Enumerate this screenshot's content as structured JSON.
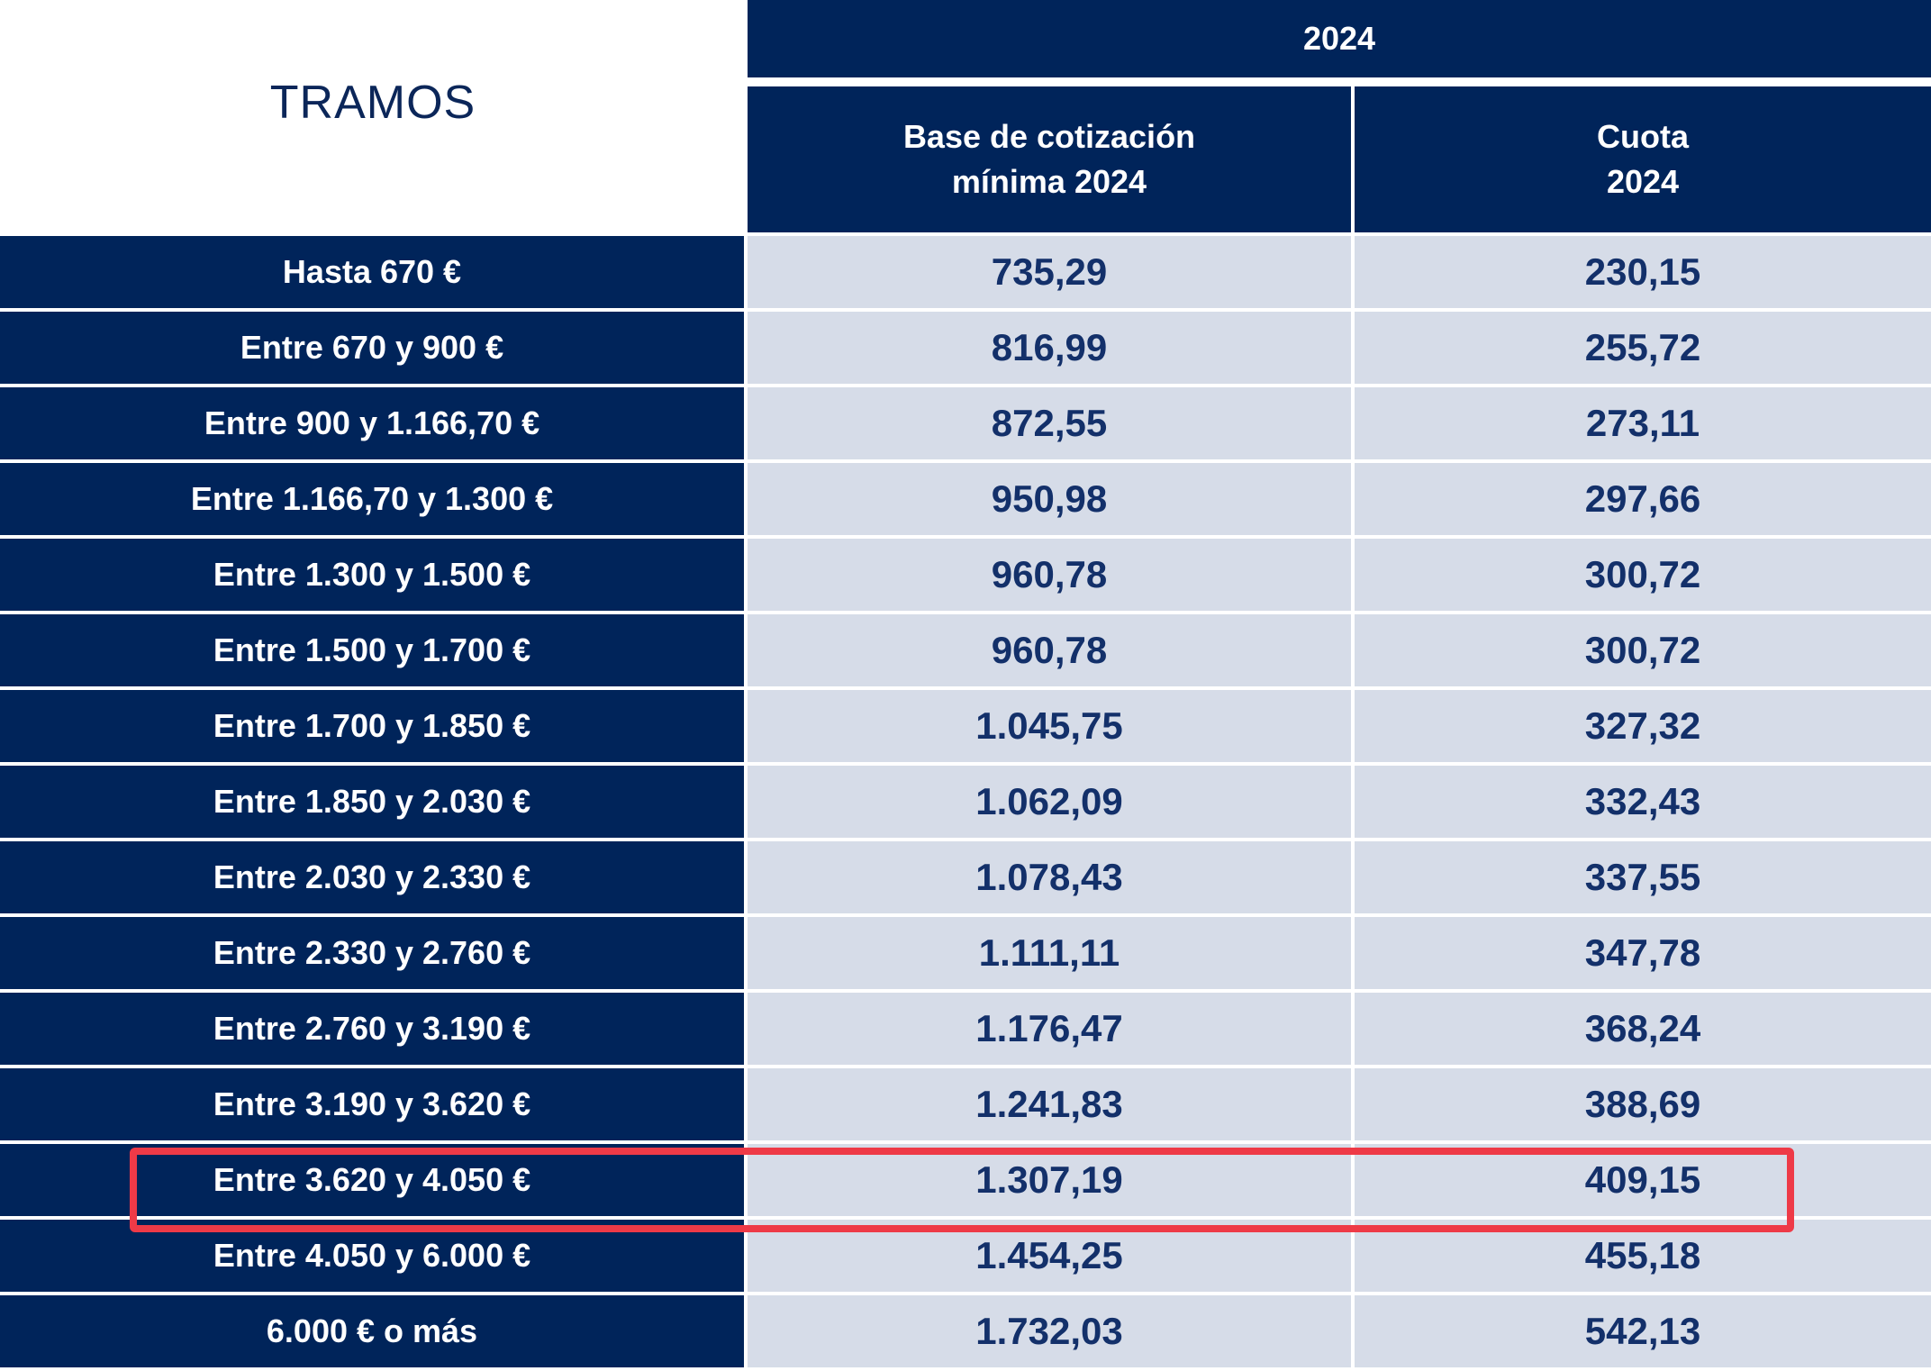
{
  "header": {
    "tramos": "TRAMOS",
    "year": "2024",
    "col_base": "Base de cotización\nmínima 2024",
    "col_cuota": "Cuota\n2024"
  },
  "rows": [
    {
      "tramo": "Hasta 670 €",
      "base": "735,29",
      "cuota": "230,15"
    },
    {
      "tramo": "Entre 670 y 900 €",
      "base": "816,99",
      "cuota": "255,72"
    },
    {
      "tramo": "Entre 900 y 1.166,70 €",
      "base": "872,55",
      "cuota": "273,11"
    },
    {
      "tramo": "Entre 1.166,70 y 1.300 €",
      "base": "950,98",
      "cuota": "297,66"
    },
    {
      "tramo": "Entre 1.300 y 1.500 €",
      "base": "960,78",
      "cuota": "300,72"
    },
    {
      "tramo": "Entre 1.500 y 1.700 €",
      "base": "960,78",
      "cuota": "300,72"
    },
    {
      "tramo": "Entre 1.700 y 1.850 €",
      "base": "1.045,75",
      "cuota": "327,32"
    },
    {
      "tramo": "Entre 1.850 y 2.030 €",
      "base": "1.062,09",
      "cuota": "332,43"
    },
    {
      "tramo": "Entre 2.030 y 2.330 €",
      "base": "1.078,43",
      "cuota": "337,55"
    },
    {
      "tramo": "Entre 2.330 y 2.760 €",
      "base": "1.111,11",
      "cuota": "347,78"
    },
    {
      "tramo": "Entre 2.760 y 3.190 €",
      "base": "1.176,47",
      "cuota": "368,24"
    },
    {
      "tramo": "Entre 3.190 y 3.620 €",
      "base": "1.241,83",
      "cuota": "388,69"
    },
    {
      "tramo": "Entre 3.620 y 4.050 €",
      "base": "1.307,19",
      "cuota": "409,15"
    },
    {
      "tramo": "Entre 4.050 y 6.000 €",
      "base": "1.454,25",
      "cuota": "455,18"
    },
    {
      "tramo": "6.000 € o más",
      "base": "1.732,03",
      "cuota": "542,13"
    }
  ],
  "highlight": {
    "row_index": 12,
    "color": "#ee3a47"
  },
  "colors": {
    "header_bg": "#00245a",
    "cell_bg": "#d6dce8",
    "value_text": "#13306a"
  }
}
